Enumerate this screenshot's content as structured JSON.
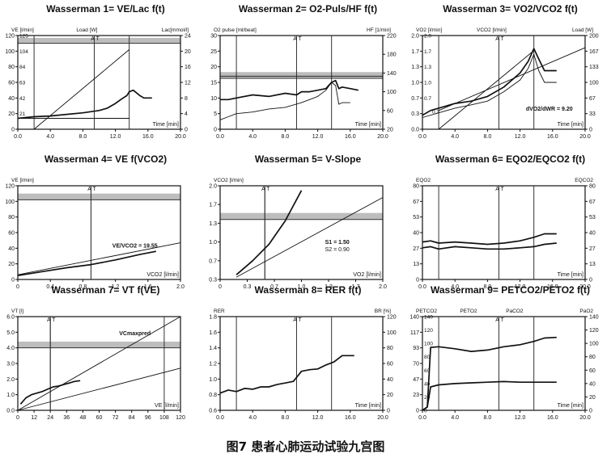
{
  "caption": "图7 患者心肺运动试验九宫图",
  "colors": {
    "line": "#111111",
    "band": "#bdbdbd",
    "grid": "#333333"
  },
  "chart_data": [
    {
      "type": "line",
      "title": "Wasserman 1= VE/Lac f(t)",
      "header_labels": [
        "VE [l/min]",
        "Load [W]",
        "Lac[mmol/l]"
      ],
      "xlabel": "Time [min]",
      "xlim": [
        0,
        20
      ],
      "xticks": [
        "0.0",
        "4.0",
        "8.0",
        "12.0",
        "16.0",
        "20.0"
      ],
      "ylim": [
        0,
        120
      ],
      "yticks": [
        "0",
        "20",
        "40",
        "60",
        "80",
        "100",
        "120"
      ],
      "y2ticks": [
        "0",
        "4",
        "8",
        "12",
        "16",
        "20",
        "24"
      ],
      "y_inner_ticks": [
        "21",
        "42",
        "63",
        "84",
        "104",
        "125"
      ],
      "at_label": "A T",
      "at_x": 9.4,
      "band": [
        110,
        117
      ],
      "vlines": [
        2,
        13.7
      ],
      "series": [
        {
          "style": "thin",
          "x": [
            2,
            13.7
          ],
          "y": [
            0,
            102
          ]
        },
        {
          "style": "thin",
          "x": [
            0,
            2,
            13.7
          ],
          "y": [
            14,
            14,
            14
          ]
        },
        {
          "style": "thick",
          "x": [
            0,
            2,
            4,
            6,
            8,
            10,
            11,
            12,
            12.8,
            13.4,
            13.7,
            14.2,
            15,
            15.5,
            16.5
          ],
          "y": [
            14,
            16,
            17,
            19,
            21,
            24,
            27,
            33,
            39,
            43,
            48,
            50,
            43,
            40,
            40
          ]
        }
      ]
    },
    {
      "type": "line",
      "title": "Wasserman 2= O2-Puls/HF f(t)",
      "header_labels": [
        "O2 pulse [ml/beat]",
        "HF [1/min]"
      ],
      "xlabel": "Time [min]",
      "xlim": [
        0,
        20
      ],
      "xticks": [
        "0.0",
        "4.0",
        "8.0",
        "12.0",
        "16.0",
        "20.0"
      ],
      "ylim": [
        0,
        30
      ],
      "yticks": [
        "0",
        "5",
        "10",
        "15",
        "20",
        "25",
        "30"
      ],
      "y2ticks": [
        "20",
        "60",
        "100",
        "140",
        "180",
        "220"
      ],
      "at_label": "A T",
      "at_x": 9.4,
      "band": [
        16.3,
        18.3
      ],
      "vlines": [
        2,
        13.7
      ],
      "series": [
        {
          "style": "thick",
          "x": [
            0,
            1,
            2,
            4,
            6,
            8,
            9.4,
            10,
            11,
            12,
            13,
            13.7,
            14.2,
            14.6,
            15,
            16,
            17
          ],
          "y": [
            9.5,
            9.5,
            10,
            11,
            10.5,
            11.5,
            11,
            12,
            12,
            12.5,
            13,
            15,
            15.6,
            13,
            13.5,
            13,
            12.5
          ]
        },
        {
          "style": "thin",
          "x": [
            0,
            1,
            2,
            4,
            6,
            8,
            10,
            11,
            12,
            13,
            13.7,
            14.2,
            14.6,
            15,
            16
          ],
          "y": [
            3,
            4,
            5,
            5.5,
            6.5,
            7,
            8.5,
            9.5,
            10.5,
            12.5,
            15,
            14,
            8,
            8.5,
            8.5
          ]
        },
        {
          "style": "thin",
          "x": [
            0,
            20
          ],
          "y": [
            17,
            17
          ]
        }
      ]
    },
    {
      "type": "line",
      "title": "Wasserman 3= VO2/VCO2 f(t)",
      "header_labels": [
        "VO2 [l/min]",
        "VCO2 [l/min]",
        "Load [W]"
      ],
      "annotation": "dVO2/dWR = 9.20",
      "annotation_small": "0.3",
      "xlabel": "Time [min]",
      "xlim": [
        0,
        20
      ],
      "xticks": [
        "0.0",
        "4.0",
        "8.0",
        "12.0",
        "16.0",
        "20.0"
      ],
      "ylim": [
        0,
        2.0
      ],
      "yticks": [
        "0.0",
        "0.3",
        "0.7",
        "1.0",
        "1.3",
        "1.7",
        "2.0"
      ],
      "y_inner_ticks": [
        "0.7",
        "1.0",
        "1.3",
        "1.7",
        "2.0"
      ],
      "y2ticks": [
        "0",
        "33",
        "67",
        "100",
        "133",
        "167",
        "200"
      ],
      "at_label": "A T",
      "at_x": 9.4,
      "vlines": [
        2,
        13.7
      ],
      "series": [
        {
          "style": "thin",
          "x": [
            2,
            13.7
          ],
          "y": [
            0,
            1.68
          ]
        },
        {
          "style": "thin",
          "x": [
            2,
            20
          ],
          "y": [
            0.4,
            1.74
          ]
        },
        {
          "style": "thick",
          "x": [
            0,
            1,
            2,
            4,
            6,
            8,
            10,
            12,
            13,
            13.7,
            14.3,
            15,
            16.5
          ],
          "y": [
            0.3,
            0.4,
            0.45,
            0.55,
            0.6,
            0.7,
            0.9,
            1.2,
            1.45,
            1.72,
            1.5,
            1.25,
            1.25
          ]
        },
        {
          "style": "thin",
          "x": [
            0,
            2,
            4,
            6,
            8,
            10,
            12,
            13,
            13.7,
            14.3,
            15,
            16.5
          ],
          "y": [
            0.25,
            0.35,
            0.45,
            0.52,
            0.6,
            0.8,
            1.05,
            1.3,
            1.6,
            1.25,
            1.0,
            1.0
          ]
        }
      ]
    },
    {
      "type": "line",
      "title": "Wasserman 4= VE f(VCO2)",
      "header_labels": [
        "VE [l/min]"
      ],
      "annotation": "VE/VCO2 = 19.55",
      "xlabel": "VCO2 [l/min]",
      "xlim": [
        0,
        2.0
      ],
      "xticks": [
        "0",
        "0.4",
        "0.8",
        "1.2",
        "1.6",
        "2.0"
      ],
      "ylim": [
        0,
        120
      ],
      "yticks": [
        "0",
        "20",
        "40",
        "60",
        "80",
        "100",
        "120"
      ],
      "at_label": "A T",
      "at_x": 0.9,
      "band": [
        102,
        110
      ],
      "vlines": [
        0.9
      ],
      "series": [
        {
          "style": "thin",
          "x": [
            0,
            2.0
          ],
          "y": [
            6,
            47
          ]
        },
        {
          "style": "thick",
          "x": [
            0,
            0.3,
            0.6,
            0.9,
            1.2,
            1.5,
            1.7
          ],
          "y": [
            5,
            10,
            15,
            19,
            25,
            32,
            36
          ]
        }
      ]
    },
    {
      "type": "line",
      "title": "Wasserman 5= V-Slope",
      "header_labels": [
        "VCO2 [l/min]"
      ],
      "annotation": "S1 = 1.50",
      "annotation2": "S2 = 0.90",
      "xlabel": "VO2 [l/min]",
      "xlim": [
        0,
        2.0
      ],
      "xticks": [
        "0",
        "0.3",
        "0.7",
        "1.0",
        "1.3",
        "1.7",
        "2.0"
      ],
      "ylim": [
        0,
        2.0
      ],
      "yticks": [
        "0.3",
        "0.7",
        "1.0",
        "1.3",
        "1.7",
        "2.0"
      ],
      "at_label": "A T",
      "at_x": 0.55,
      "band": [
        1.28,
        1.42
      ],
      "vlines": [
        0.55
      ],
      "series": [
        {
          "style": "thick",
          "x": [
            0.2,
            0.4,
            0.6,
            0.8,
            1.0
          ],
          "y": [
            0.1,
            0.4,
            0.75,
            1.25,
            1.9
          ]
        },
        {
          "style": "thin",
          "x": [
            0.2,
            2.0
          ],
          "y": [
            0.05,
            1.75
          ]
        }
      ]
    },
    {
      "type": "line",
      "title": "Wasserman 6= EQO2/EQCO2 f(t)",
      "header_labels": [
        "EQO2",
        "EQCO2"
      ],
      "xlabel": "Time [min]",
      "xlim": [
        0,
        20
      ],
      "xticks": [
        "0.0",
        "4.0",
        "8.0",
        "12.0",
        "16.0",
        "20.0"
      ],
      "ylim": [
        0,
        80
      ],
      "yticks": [
        "0",
        "13",
        "27",
        "40",
        "53",
        "67",
        "80"
      ],
      "y2ticks": [
        "0",
        "13",
        "27",
        "40",
        "53",
        "67",
        "80"
      ],
      "at_label": "A T",
      "at_x": 9.4,
      "vlines": [
        2,
        13.7
      ],
      "series": [
        {
          "style": "thick",
          "x": [
            0,
            1,
            2,
            4,
            6,
            8,
            10,
            12,
            13.7,
            15,
            16.5
          ],
          "y": [
            32,
            33,
            31,
            32,
            31,
            30,
            31,
            33,
            36,
            39,
            39
          ]
        },
        {
          "style": "thick",
          "x": [
            0,
            1,
            2,
            4,
            6,
            8,
            10,
            12,
            13.7,
            15,
            16.5
          ],
          "y": [
            27,
            28,
            26,
            28,
            27,
            26,
            26,
            27,
            28,
            30,
            31
          ]
        }
      ]
    },
    {
      "type": "line",
      "title": "Wasserman 7= VT f(VE)",
      "header_labels": [
        "VT [l]"
      ],
      "annotation": "VCmaxpred",
      "xlabel": "VE [l/min]",
      "xlim": [
        0,
        120
      ],
      "xticks": [
        "0",
        "12",
        "24",
        "36",
        "48",
        "60",
        "72",
        "84",
        "96",
        "108",
        "120"
      ],
      "ylim": [
        0,
        6.0
      ],
      "yticks": [
        "0.0",
        "1.0",
        "2.0",
        "3.0",
        "4.0",
        "5.0",
        "6.0"
      ],
      "at_label": "A T",
      "at_x": 24,
      "band": [
        4.0,
        4.4
      ],
      "vlines": [
        24,
        108
      ],
      "series": [
        {
          "style": "thin",
          "x": [
            0,
            120
          ],
          "y": [
            0,
            6.0
          ]
        },
        {
          "style": "thin",
          "x": [
            0,
            120
          ],
          "y": [
            0,
            2.7
          ]
        },
        {
          "style": "thick",
          "x": [
            2,
            6,
            10,
            14,
            18,
            22,
            26,
            30,
            34,
            38,
            42,
            46
          ],
          "y": [
            0.4,
            0.8,
            1.0,
            1.1,
            1.2,
            1.35,
            1.5,
            1.55,
            1.65,
            1.75,
            1.85,
            1.9
          ]
        }
      ]
    },
    {
      "type": "line",
      "title": "Wasserman 8= RER f(t)",
      "header_labels": [
        "RER",
        "BR [%]"
      ],
      "xlabel": "Time [min]",
      "xlim": [
        0,
        20
      ],
      "xticks": [
        "0.0",
        "4.0",
        "8.0",
        "12.0",
        "16.0",
        "20.0"
      ],
      "ylim": [
        0.6,
        1.8
      ],
      "yticks": [
        "0.6",
        "0.8",
        "1.0",
        "1.2",
        "1.4",
        "1.6",
        "1.8"
      ],
      "y2ticks": [
        "0",
        "20",
        "40",
        "60",
        "80",
        "100",
        "120"
      ],
      "at_label": "A T",
      "at_x": 9.4,
      "vlines": [
        2,
        13.7
      ],
      "series": [
        {
          "style": "thick",
          "x": [
            0,
            1,
            2,
            3,
            4,
            5,
            6,
            7,
            8,
            9,
            10,
            11,
            12,
            13,
            14,
            15,
            16.5
          ],
          "y": [
            0.82,
            0.86,
            0.84,
            0.88,
            0.87,
            0.9,
            0.9,
            0.93,
            0.95,
            0.97,
            1.1,
            1.12,
            1.13,
            1.18,
            1.22,
            1.3,
            1.3
          ]
        }
      ]
    },
    {
      "type": "line",
      "title": "Wasserman 9= PETCO2/PETO2 f(t)",
      "header_labels": [
        "PETCO2",
        "PETO2",
        "PaCO2",
        "PaO2"
      ],
      "xlabel": "Time [min]",
      "xlim": [
        0,
        20
      ],
      "xticks": [
        "0.0",
        "4.0",
        "8.0",
        "12.0",
        "16.0",
        "20.0"
      ],
      "ylim": [
        0,
        140
      ],
      "yticks": [
        "0",
        "23",
        "47",
        "70",
        "93",
        "117",
        "140"
      ],
      "y_inner_ticks": [
        "0",
        "20",
        "40",
        "60",
        "80",
        "100",
        "120",
        "140"
      ],
      "y2ticks": [
        "0",
        "20",
        "40",
        "60",
        "80",
        "100",
        "120",
        "140"
      ],
      "at_label": "A T",
      "at_x": 9.4,
      "vlines": [
        2,
        13.7
      ],
      "series": [
        {
          "style": "thick",
          "x": [
            0,
            0.6,
            1,
            2,
            4,
            6,
            8,
            10,
            12,
            13.7,
            15,
            16.5
          ],
          "y": [
            0,
            5,
            94,
            95,
            92,
            88,
            90,
            95,
            98,
            103,
            108,
            109
          ]
        },
        {
          "style": "thick",
          "x": [
            0,
            0.6,
            1,
            2,
            4,
            6,
            8,
            10,
            12,
            13.7,
            15,
            16.5
          ],
          "y": [
            0,
            5,
            35,
            38,
            40,
            41,
            42,
            43,
            42,
            42,
            42,
            42
          ]
        }
      ]
    }
  ]
}
